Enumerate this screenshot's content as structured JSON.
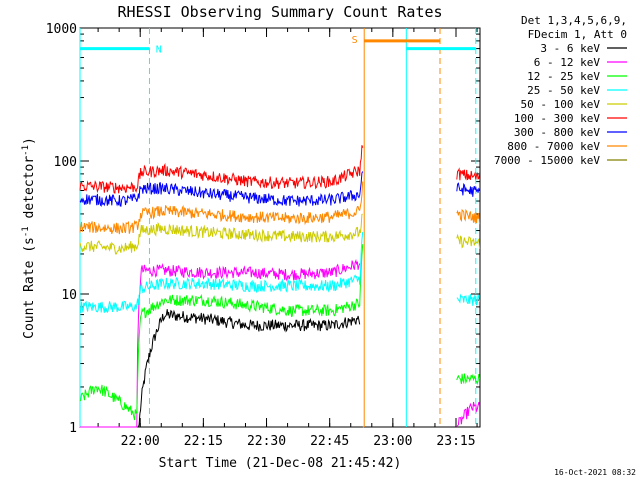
{
  "chart_data": {
    "type": "line",
    "title": "RHESSI Observing Summary Count Rates",
    "xlabel": "Start Time (21-Dec-08 21:45:42)",
    "ylabel_main": "Count Rate (s",
    "ylabel_sup1": "-1",
    "ylabel_mid": " detector",
    "ylabel_sup2": "-1",
    "ylabel_end": ")",
    "y_scale": "log",
    "ylim": [
      1,
      1000
    ],
    "xlim_minutes": [
      0,
      95
    ],
    "x_ticks": [
      {
        "minute": 14.3,
        "label": "22:00"
      },
      {
        "minute": 29.3,
        "label": "22:15"
      },
      {
        "minute": 44.3,
        "label": "22:30"
      },
      {
        "minute": 59.3,
        "label": "22:45"
      },
      {
        "minute": 74.3,
        "label": "23:00"
      },
      {
        "minute": 89.3,
        "label": "23:15"
      }
    ],
    "y_ticks": [
      {
        "value": 1,
        "label": "1"
      },
      {
        "value": 10,
        "label": "10"
      },
      {
        "value": 100,
        "label": "100"
      },
      {
        "value": 1000,
        "label": "1000"
      }
    ],
    "legend_header": [
      "Det 1,3,4,5,6,9,",
      "FDecim 1, Att 0"
    ],
    "legend_position": "right",
    "series": [
      {
        "name": "3 - 6 keV",
        "color": "#000000",
        "segments": [
          {
            "x": [
              0,
              8,
              14,
              20,
              30,
              40,
              50,
              60,
              66.5
            ],
            "y": [
              1.0,
              1.0,
              1.0,
              7.0,
              6.5,
              5.8,
              5.8,
              5.8,
              6.5
            ]
          },
          {
            "x": [
              90,
              95
            ],
            "y": [
              1.0,
              1.0
            ]
          }
        ]
      },
      {
        "name": "6 - 12 keV",
        "color": "#ff00ff",
        "segments": [
          {
            "x": [
              0,
              13.5,
              14.5,
              20,
              30,
              40,
              50,
              60,
              66.5
            ],
            "y": [
              1.0,
              1.0,
              15,
              15,
              14.5,
              14.5,
              14,
              14.5,
              17
            ]
          },
          {
            "x": [
              89.5,
              93,
              95
            ],
            "y": [
              1.0,
              1.4,
              1.4
            ]
          }
        ]
      },
      {
        "name": "12 - 25 keV",
        "color": "#00ff00",
        "segments": [
          {
            "x": [
              0,
              4,
              13.5,
              14.5,
              20,
              30,
              40,
              50,
              60,
              66.5,
              67.2
            ],
            "y": [
              1.6,
              2.0,
              1.2,
              7.0,
              9.0,
              9.0,
              8.2,
              7.5,
              7.5,
              8.5,
              25
            ]
          },
          {
            "x": [
              89.5,
              95
            ],
            "y": [
              2.3,
              2.3
            ]
          }
        ]
      },
      {
        "name": "25 - 50 keV",
        "color": "#00ffff",
        "segments": [
          {
            "x": [
              0,
              4,
              13.5,
              14.5,
              20,
              30,
              40,
              50,
              60,
              66.5,
              67.2
            ],
            "y": [
              8.0,
              8.0,
              8.0,
              11,
              12,
              12,
              11.5,
              11.5,
              11.5,
              13,
              30
            ]
          },
          {
            "x": [
              89.5,
              95
            ],
            "y": [
              9.0,
              9.0
            ]
          }
        ]
      },
      {
        "name": "50 - 100 keV",
        "color": "#cccc00",
        "segments": [
          {
            "x": [
              0,
              10,
              13.5,
              14.5,
              20,
              30,
              40,
              50,
              60,
              66.5,
              67.2
            ],
            "y": [
              23,
              22,
              23,
              30,
              31,
              29,
              28,
              27,
              27,
              29,
              40
            ]
          },
          {
            "x": [
              89.5,
              95
            ],
            "y": [
              25,
              24
            ]
          }
        ]
      },
      {
        "name": "100 - 300 keV",
        "color": "#ff0000",
        "segments": [
          {
            "x": [
              0,
              10,
              13.5,
              14.5,
              20,
              30,
              40,
              50,
              60,
              66.5,
              67.2
            ],
            "y": [
              65,
              63,
              64,
              82,
              85,
              78,
              70,
              68,
              70,
              85,
              140
            ]
          },
          {
            "x": [
              89.5,
              95
            ],
            "y": [
              80,
              75
            ]
          }
        ]
      },
      {
        "name": "300 - 800 keV",
        "color": "#0000ff",
        "segments": [
          {
            "x": [
              0,
              10,
              13.5,
              14.5,
              20,
              30,
              40,
              50,
              60,
              66.5,
              67.2
            ],
            "y": [
              52,
              50,
              52,
              62,
              62,
              57,
              53,
              50,
              51,
              56,
              90
            ]
          },
          {
            "x": [
              89.5,
              95
            ],
            "y": [
              62,
              58
            ]
          }
        ]
      },
      {
        "name": "800 - 7000 keV",
        "color": "#ff8800",
        "segments": [
          {
            "x": [
              0,
              10,
              13.5,
              14.5,
              20,
              30,
              40,
              50,
              60,
              66.5,
              67.2
            ],
            "y": [
              32,
              31,
              32,
              40,
              42,
              40,
              38,
              37,
              38,
              42,
              70
            ]
          },
          {
            "x": [
              89.5,
              95
            ],
            "y": [
              40,
              37
            ]
          }
        ]
      },
      {
        "name": "7000 - 15000 keV",
        "color": "#808000",
        "segments": [
          {
            "x": [
              67.2,
              67.4
            ],
            "y": [
              1.0,
              1.0
            ]
          }
        ]
      }
    ],
    "annotations": {
      "cyan_bars": [
        {
          "x_start": 0,
          "x_end": 16.5,
          "y": 700,
          "color": "#00ffff"
        },
        {
          "x_start": 77.5,
          "x_end": 94,
          "y": 700,
          "color": "#00ffff"
        }
      ],
      "orange_bar": {
        "x_start": 67.5,
        "x_end": 85.5,
        "y": 800,
        "color": "#ff8800"
      },
      "vlines": [
        {
          "x": 0.0,
          "color": "#00ffff",
          "style": "solid"
        },
        {
          "x": 16.5,
          "color": "#00ffff",
          "style": "dashed"
        },
        {
          "x": 67.5,
          "color": "#ff8800",
          "style": "solid"
        },
        {
          "x": 77.5,
          "color": "#00ffff",
          "style": "solid"
        },
        {
          "x": 85.5,
          "color": "#ff8800",
          "style": "dashed"
        },
        {
          "x": 94.0,
          "color": "#00ffff",
          "style": "dashed"
        }
      ],
      "labels": [
        {
          "text": "N",
          "x": 18.0,
          "y": 700,
          "color": "#00ffff"
        },
        {
          "text": "S",
          "x": 64.5,
          "y": 830,
          "color": "#ff8800"
        }
      ]
    },
    "footer_date": "16-Oct-2021 08:32"
  }
}
